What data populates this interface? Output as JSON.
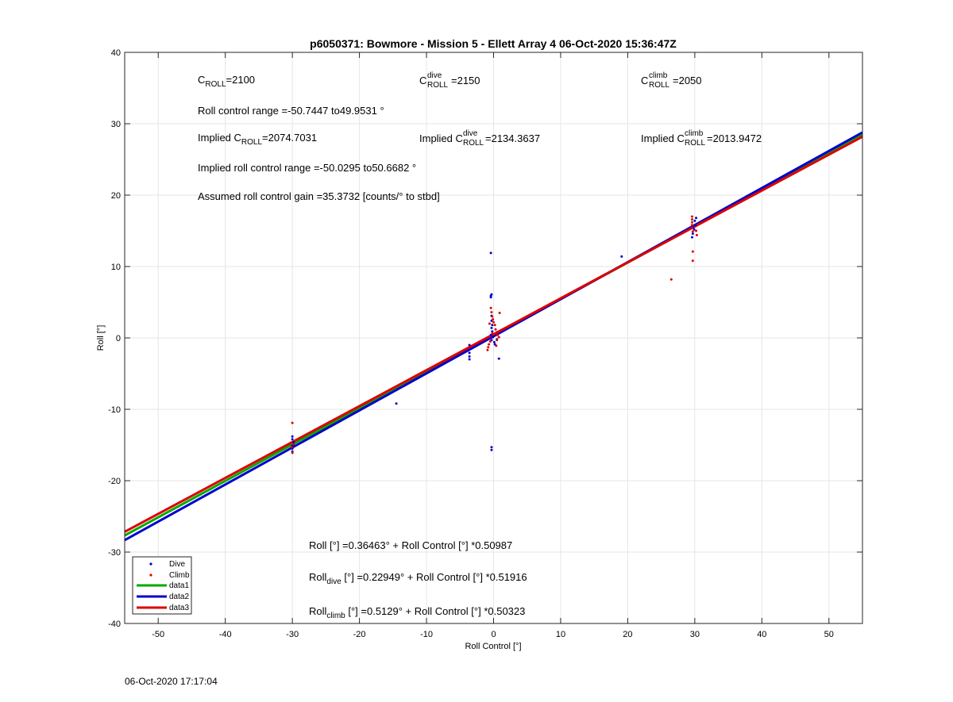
{
  "chart_data": {
    "type": "scatter",
    "title": "p6050371: Bowmore - Mission 5 - Ellett Array 4 06-Oct-2020 15:36:47Z",
    "xlabel": "Roll Control [°]",
    "ylabel": "Roll [°]",
    "xlim": [
      -55,
      55
    ],
    "ylim": [
      -40,
      40
    ],
    "xticks": [
      -50,
      -40,
      -30,
      -20,
      -10,
      0,
      10,
      20,
      30,
      40,
      50
    ],
    "yticks": [
      -40,
      -30,
      -20,
      -10,
      0,
      10,
      20,
      30,
      40
    ],
    "grid": true,
    "legend_position": "bottom-left",
    "legend": [
      {
        "label": "Dive",
        "kind": "marker",
        "color": "#0000cc"
      },
      {
        "label": "Climb",
        "kind": "marker",
        "color": "#dd0000"
      },
      {
        "label": "data1",
        "kind": "line",
        "color": "#00aa00"
      },
      {
        "label": "data2",
        "kind": "line",
        "color": "#0000cc"
      },
      {
        "label": "data3",
        "kind": "line",
        "color": "#dd0000"
      }
    ],
    "series": [
      {
        "name": "Dive",
        "kind": "points",
        "color": "#0000cc",
        "points": [
          [
            -30,
            -13.8
          ],
          [
            -30,
            -14.2
          ],
          [
            -30,
            -15.1
          ],
          [
            -30,
            -15.5
          ],
          [
            -30,
            -15.9
          ],
          [
            -29.8,
            -14.6
          ],
          [
            -14.5,
            -9.2
          ],
          [
            -3.6,
            -1.0
          ],
          [
            -3.6,
            -2.1
          ],
          [
            -3.6,
            -2.6
          ],
          [
            -3.6,
            -3.0
          ],
          [
            -0.4,
            11.9
          ],
          [
            -0.4,
            5.7
          ],
          [
            -0.4,
            5.9
          ],
          [
            -0.3,
            6.1
          ],
          [
            -0.3,
            3.1
          ],
          [
            -0.3,
            2.4
          ],
          [
            -0.2,
            1.8
          ],
          [
            -0.3,
            1.4
          ],
          [
            -0.2,
            0.9
          ],
          [
            -0.4,
            0.4
          ],
          [
            -0.1,
            0.1
          ],
          [
            -0.3,
            -0.3
          ],
          [
            0.1,
            -0.6
          ],
          [
            0.2,
            -0.9
          ],
          [
            0.5,
            -0.2
          ],
          [
            0.8,
            -2.9
          ],
          [
            -0.3,
            -15.3
          ],
          [
            -0.3,
            -15.7
          ],
          [
            19.1,
            11.4
          ],
          [
            29.6,
            14.1
          ],
          [
            29.7,
            14.6
          ],
          [
            29.9,
            15.2
          ],
          [
            30.1,
            15.8
          ],
          [
            30.0,
            16.4
          ],
          [
            30.2,
            16.8
          ],
          [
            29.8,
            15.5
          ]
        ]
      },
      {
        "name": "Climb",
        "kind": "points",
        "color": "#dd0000",
        "points": [
          [
            -30,
            -11.9
          ],
          [
            -30,
            -16.1
          ],
          [
            -30.1,
            -15.3
          ],
          [
            -29.8,
            -14.9
          ],
          [
            -0.4,
            4.2
          ],
          [
            -0.3,
            3.6
          ],
          [
            -0.2,
            3.0
          ],
          [
            -0.1,
            2.6
          ],
          [
            0.0,
            2.2
          ],
          [
            0.2,
            1.8
          ],
          [
            0.3,
            1.2
          ],
          [
            0.5,
            0.8
          ],
          [
            0.6,
            0.4
          ],
          [
            0.8,
            0.1
          ],
          [
            0.5,
            -0.3
          ],
          [
            -0.5,
            -0.5
          ],
          [
            -0.7,
            -0.9
          ],
          [
            -0.8,
            -1.3
          ],
          [
            -0.9,
            -1.7
          ],
          [
            -0.6,
            2.0
          ],
          [
            0.9,
            3.5
          ],
          [
            0.4,
            -1.1
          ],
          [
            -0.2,
            0.6
          ],
          [
            26.5,
            8.2
          ],
          [
            29.7,
            10.8
          ],
          [
            29.7,
            12.1
          ],
          [
            29.7,
            14.9
          ],
          [
            29.6,
            15.4
          ],
          [
            29.6,
            15.8
          ],
          [
            29.6,
            16.2
          ],
          [
            29.6,
            16.6
          ],
          [
            29.6,
            17.0
          ],
          [
            30.2,
            15.0
          ],
          [
            30.3,
            14.4
          ]
        ]
      },
      {
        "name": "data1",
        "kind": "line",
        "color": "#00aa00",
        "intercept": 0.36463,
        "slope": 0.50987
      },
      {
        "name": "data2",
        "kind": "line",
        "color": "#0000cc",
        "intercept": 0.22949,
        "slope": 0.51916
      },
      {
        "name": "data3",
        "kind": "line",
        "color": "#dd0000",
        "intercept": 0.5129,
        "slope": 0.50323
      }
    ],
    "annotations": {
      "c_roll": {
        "base": "C",
        "sub": "ROLL",
        "value": "=2100"
      },
      "c_roll_dive": {
        "base": "C",
        "sup": "dive",
        "sub": "ROLL",
        "value": "=2150"
      },
      "c_roll_climb": {
        "base": "C",
        "sup": "climb",
        "sub": "ROLL",
        "value": "=2050"
      },
      "range": "Roll control range =-50.7447 to49.9531 °",
      "implied": {
        "prefix": "Implied C",
        "sub": "ROLL",
        "value": "=2074.7031"
      },
      "implied_dive": {
        "prefix": "Implied C",
        "sup": "dive",
        "sub": "ROLL",
        "value": "=2134.3637"
      },
      "implied_climb": {
        "prefix": "Implied C",
        "sup": "climb",
        "sub": "ROLL",
        "value": "=2013.9472"
      },
      "implied_range": "Implied roll control range =-50.0295 to50.6682 °",
      "gain": "Assumed roll control gain =35.3732 [counts/° to stbd]",
      "eq_all": "Roll [°] =0.36463° + Roll Control [°] *0.50987",
      "eq_dive": {
        "base": "Roll",
        "sub": "dive",
        "rest": " [°] =0.22949° + Roll Control [°] *0.51916"
      },
      "eq_climb": {
        "base": "Roll",
        "sub": "climb",
        "rest": " [°] =0.5129° + Roll Control [°] *0.50323"
      }
    }
  },
  "footer": {
    "timestamp": "06-Oct-2020 17:17:04"
  }
}
